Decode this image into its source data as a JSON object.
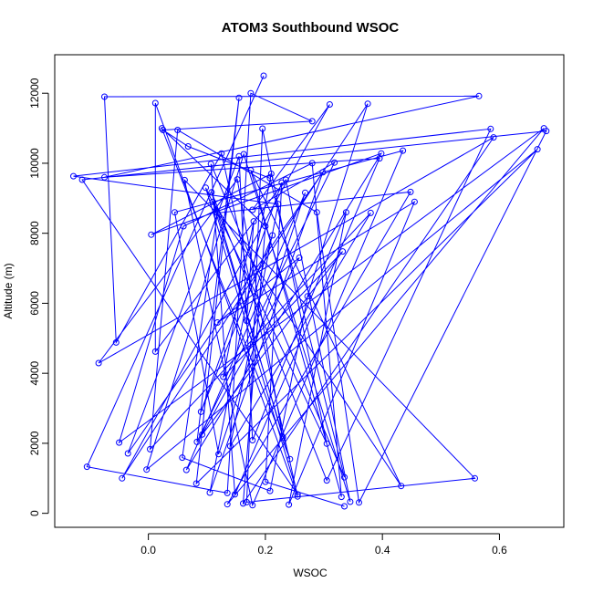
{
  "chart_data": {
    "type": "line",
    "title": "ATOM3 Southbound WSOC",
    "xlabel": "WSOC",
    "ylabel": "Altitude (m)",
    "xlim": [
      -0.16,
      0.71
    ],
    "ylim": [
      -400,
      13100
    ],
    "x_ticks": [
      0.0,
      0.2,
      0.4,
      0.6
    ],
    "x_tick_labels": [
      "0.0",
      "0.2",
      "0.4",
      "0.6"
    ],
    "y_ticks": [
      0,
      2000,
      4000,
      6000,
      8000,
      10000,
      12000
    ],
    "y_tick_labels": [
      "0",
      "2000",
      "4000",
      "6000",
      "8000",
      "10000",
      "12000"
    ],
    "grid": false,
    "legend": "none",
    "series": [
      {
        "color": "#0000ff",
        "marker": "open-circle",
        "points": [
          {
            "x": 0.197,
            "y": 12500
          },
          {
            "x": -0.105,
            "y": 1330
          },
          {
            "x": 0.135,
            "y": 580
          },
          {
            "x": 0.175,
            "y": 12000
          },
          {
            "x": 0.28,
            "y": 11200
          },
          {
            "x": 0.025,
            "y": 10950
          },
          {
            "x": 0.068,
            "y": 10480
          },
          {
            "x": 0.208,
            "y": 9570
          },
          {
            "x": 0.335,
            "y": 1030
          },
          {
            "x": 0.107,
            "y": 9980
          },
          {
            "x": 0.148,
            "y": 540
          },
          {
            "x": 0.395,
            "y": 10140
          },
          {
            "x": -0.075,
            "y": 9600
          },
          {
            "x": 0.565,
            "y": 11920
          },
          {
            "x": -0.075,
            "y": 11900
          },
          {
            "x": -0.055,
            "y": 4880
          },
          {
            "x": 0.125,
            "y": 10280
          },
          {
            "x": 0.255,
            "y": 480
          },
          {
            "x": 0.012,
            "y": 11720
          },
          {
            "x": 0.012,
            "y": 4620
          },
          {
            "x": 0.235,
            "y": 9530
          },
          {
            "x": 0.345,
            "y": 330
          },
          {
            "x": 0.163,
            "y": 10260
          },
          {
            "x": -0.003,
            "y": 1250
          },
          {
            "x": 0.665,
            "y": 10400
          },
          {
            "x": 0.082,
            "y": 850
          },
          {
            "x": 0.155,
            "y": 11870
          },
          {
            "x": 0.083,
            "y": 2040
          },
          {
            "x": 0.318,
            "y": 10020
          },
          {
            "x": 0.178,
            "y": 8670
          },
          {
            "x": 0.31,
            "y": 11680
          },
          {
            "x": -0.045,
            "y": 1000
          },
          {
            "x": 0.375,
            "y": 11700
          },
          {
            "x": 0.272,
            "y": 6200
          },
          {
            "x": 0.208,
            "y": 640
          },
          {
            "x": 0.058,
            "y": 1590
          },
          {
            "x": 0.118,
            "y": 8580
          },
          {
            "x": 0.448,
            "y": 9180
          },
          {
            "x": 0.135,
            "y": 260
          },
          {
            "x": 0.676,
            "y": 11000
          },
          {
            "x": -0.05,
            "y": 2020
          },
          {
            "x": 0.06,
            "y": 8200
          },
          {
            "x": 0.28,
            "y": 10000
          },
          {
            "x": 0.33,
            "y": 470
          },
          {
            "x": 0.175,
            "y": 9800
          },
          {
            "x": 0.432,
            "y": 780
          },
          {
            "x": 0.11,
            "y": 8900
          },
          {
            "x": 0.242,
            "y": 1550
          },
          {
            "x": 0.023,
            "y": 11000
          },
          {
            "x": 0.2,
            "y": 8200
          },
          {
            "x": 0.162,
            "y": 280
          },
          {
            "x": 0.59,
            "y": 10740
          },
          {
            "x": -0.085,
            "y": 4290
          },
          {
            "x": 0.152,
            "y": 9540
          },
          {
            "x": 0.23,
            "y": 2170
          },
          {
            "x": 0.108,
            "y": 9170
          },
          {
            "x": 0.305,
            "y": 940
          },
          {
            "x": 0.585,
            "y": 10980
          },
          {
            "x": -0.128,
            "y": 9630
          },
          {
            "x": 0.222,
            "y": 8830
          },
          {
            "x": 0.14,
            "y": 1920
          },
          {
            "x": 0.38,
            "y": 8580
          },
          {
            "x": 0.003,
            "y": 1830
          },
          {
            "x": 0.05,
            "y": 10950
          },
          {
            "x": 0.288,
            "y": 8600
          },
          {
            "x": 0.36,
            "y": 310
          },
          {
            "x": 0.68,
            "y": 10920
          },
          {
            "x": -0.113,
            "y": 9530
          },
          {
            "x": 0.255,
            "y": 540
          },
          {
            "x": 0.098,
            "y": 9300
          },
          {
            "x": 0.305,
            "y": 1990
          },
          {
            "x": 0.195,
            "y": 10990
          },
          {
            "x": 0.168,
            "y": 320
          },
          {
            "x": 0.558,
            "y": 1000
          },
          {
            "x": 0.062,
            "y": 9520
          },
          {
            "x": 0.178,
            "y": 230
          },
          {
            "x": 0.435,
            "y": 10360
          },
          {
            "x": 0.045,
            "y": 8600
          },
          {
            "x": 0.12,
            "y": 1690
          },
          {
            "x": 0.268,
            "y": 9160
          },
          {
            "x": 0.065,
            "y": 1240
          },
          {
            "x": 0.398,
            "y": 10280
          },
          {
            "x": 0.005,
            "y": 7960
          },
          {
            "x": 0.21,
            "y": 9700
          },
          {
            "x": 0.105,
            "y": 590
          },
          {
            "x": 0.298,
            "y": 9740
          },
          {
            "x": -0.035,
            "y": 1710
          },
          {
            "x": 0.155,
            "y": 10200
          },
          {
            "x": 0.178,
            "y": 2090
          },
          {
            "x": 0.338,
            "y": 8600
          },
          {
            "x": 0.24,
            "y": 250
          },
          {
            "x": 0.455,
            "y": 8900
          },
          {
            "x": 0.118,
            "y": 5450
          },
          {
            "x": 0.258,
            "y": 7300
          },
          {
            "x": 0.092,
            "y": 2250
          },
          {
            "x": 0.332,
            "y": 7480
          },
          {
            "x": 0.128,
            "y": 3900
          },
          {
            "x": 0.18,
            "y": 8340
          },
          {
            "x": 0.168,
            "y": 5500
          },
          {
            "x": 0.212,
            "y": 7940
          },
          {
            "x": 0.09,
            "y": 2900
          },
          {
            "x": 0.228,
            "y": 9450
          },
          {
            "x": 0.2,
            "y": 900
          },
          {
            "x": 0.335,
            "y": 200
          }
        ]
      }
    ]
  }
}
